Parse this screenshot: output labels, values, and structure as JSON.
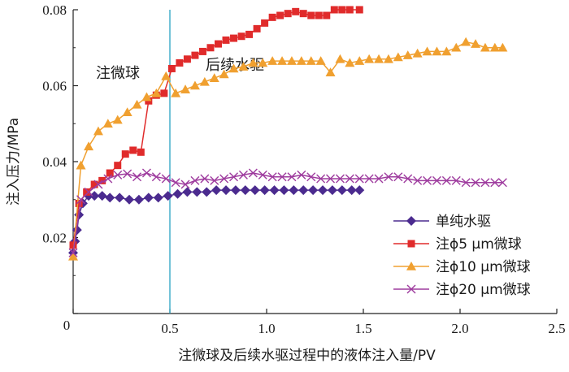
{
  "chart_data": {
    "type": "line",
    "title": "",
    "xlabel": "注微球及后续水驱过程中的液体注入量/PV",
    "ylabel": "注入压力/MPa",
    "xlim": [
      0,
      2.5
    ],
    "ylim": [
      0,
      0.08
    ],
    "x_ticks": [
      "0",
      "0.5",
      "1.0",
      "1.5",
      "2.0",
      "2.5"
    ],
    "y_ticks": [
      "0",
      "0.02",
      "0.04",
      "0.06",
      "0.08"
    ],
    "x_tick_values": [
      0,
      0.5,
      1.0,
      1.5,
      2.0,
      2.5
    ],
    "y_tick_values": [
      0,
      0.02,
      0.04,
      0.06,
      0.08
    ],
    "grid": false,
    "legend_position": "lower-right",
    "annotations": [
      {
        "text": "注微球",
        "position": "left of line"
      },
      {
        "text": "后续水驱",
        "position": "right of line"
      }
    ],
    "vertical_line": {
      "x": 0.5,
      "color": "#29a3c4"
    },
    "series": [
      {
        "name": "单纯水驱",
        "marker": "diamond",
        "color": "#4b2b8f",
        "x": [
          0.0,
          0.01,
          0.02,
          0.03,
          0.05,
          0.08,
          0.11,
          0.15,
          0.19,
          0.24,
          0.29,
          0.34,
          0.39,
          0.44,
          0.49,
          0.54,
          0.59,
          0.64,
          0.69,
          0.74,
          0.79,
          0.84,
          0.89,
          0.94,
          0.99,
          1.04,
          1.09,
          1.14,
          1.19,
          1.24,
          1.29,
          1.34,
          1.39,
          1.44,
          1.48
        ],
        "y": [
          0.016,
          0.019,
          0.022,
          0.026,
          0.029,
          0.031,
          0.031,
          0.031,
          0.0305,
          0.0305,
          0.03,
          0.03,
          0.0305,
          0.0305,
          0.031,
          0.0315,
          0.032,
          0.032,
          0.032,
          0.0325,
          0.0325,
          0.0325,
          0.0325,
          0.0325,
          0.0325,
          0.0325,
          0.0325,
          0.0325,
          0.0325,
          0.0325,
          0.0325,
          0.0325,
          0.0325,
          0.0325,
          0.0325
        ]
      },
      {
        "name": "注ϕ5 μm微球",
        "marker": "square",
        "color": "#e02b2b",
        "x": [
          0.0,
          0.03,
          0.07,
          0.11,
          0.15,
          0.19,
          0.23,
          0.27,
          0.31,
          0.35,
          0.39,
          0.43,
          0.47,
          0.51,
          0.55,
          0.59,
          0.63,
          0.67,
          0.71,
          0.75,
          0.79,
          0.83,
          0.87,
          0.91,
          0.95,
          0.99,
          1.03,
          1.07,
          1.11,
          1.15,
          1.19,
          1.23,
          1.27,
          1.31,
          1.35,
          1.39,
          1.43,
          1.48
        ],
        "y": [
          0.018,
          0.029,
          0.032,
          0.034,
          0.035,
          0.037,
          0.039,
          0.042,
          0.043,
          0.0425,
          0.056,
          0.0575,
          0.058,
          0.0645,
          0.066,
          0.067,
          0.068,
          0.069,
          0.07,
          0.071,
          0.072,
          0.0725,
          0.073,
          0.0735,
          0.075,
          0.0765,
          0.078,
          0.0785,
          0.079,
          0.0795,
          0.079,
          0.0785,
          0.0785,
          0.0785,
          0.08,
          0.08,
          0.08,
          0.08
        ]
      },
      {
        "name": "注ϕ10 μm微球",
        "marker": "triangle",
        "color": "#f0a030",
        "x": [
          0.0,
          0.04,
          0.08,
          0.13,
          0.18,
          0.23,
          0.28,
          0.33,
          0.38,
          0.43,
          0.48,
          0.53,
          0.58,
          0.63,
          0.68,
          0.73,
          0.78,
          0.83,
          0.88,
          0.93,
          0.98,
          1.03,
          1.08,
          1.13,
          1.18,
          1.23,
          1.28,
          1.33,
          1.38,
          1.43,
          1.48,
          1.53,
          1.58,
          1.63,
          1.68,
          1.73,
          1.78,
          1.83,
          1.88,
          1.93,
          1.98,
          2.03,
          2.08,
          2.13,
          2.18,
          2.22
        ],
        "y": [
          0.015,
          0.039,
          0.044,
          0.048,
          0.05,
          0.051,
          0.053,
          0.055,
          0.057,
          0.058,
          0.0625,
          0.058,
          0.059,
          0.06,
          0.061,
          0.062,
          0.063,
          0.0645,
          0.065,
          0.066,
          0.066,
          0.0665,
          0.0665,
          0.0665,
          0.0665,
          0.0665,
          0.0665,
          0.0635,
          0.067,
          0.066,
          0.0665,
          0.067,
          0.067,
          0.067,
          0.0675,
          0.068,
          0.0685,
          0.069,
          0.069,
          0.069,
          0.07,
          0.0715,
          0.071,
          0.07,
          0.07,
          0.07
        ]
      },
      {
        "name": "注ϕ20 μm微球",
        "marker": "x",
        "color": "#9e3b9e",
        "x": [
          0.0,
          0.04,
          0.08,
          0.13,
          0.18,
          0.23,
          0.28,
          0.33,
          0.38,
          0.43,
          0.48,
          0.53,
          0.58,
          0.63,
          0.68,
          0.73,
          0.78,
          0.83,
          0.88,
          0.93,
          0.98,
          1.03,
          1.08,
          1.13,
          1.18,
          1.23,
          1.28,
          1.33,
          1.38,
          1.43,
          1.48,
          1.53,
          1.58,
          1.63,
          1.68,
          1.73,
          1.78,
          1.83,
          1.88,
          1.93,
          1.98,
          2.03,
          2.08,
          2.13,
          2.18,
          2.22
        ],
        "y": [
          0.016,
          0.03,
          0.032,
          0.034,
          0.0355,
          0.0365,
          0.0368,
          0.036,
          0.037,
          0.036,
          0.0355,
          0.0345,
          0.034,
          0.035,
          0.0355,
          0.035,
          0.0355,
          0.036,
          0.0365,
          0.037,
          0.0365,
          0.036,
          0.036,
          0.036,
          0.0365,
          0.036,
          0.0355,
          0.0355,
          0.0355,
          0.0355,
          0.0355,
          0.0355,
          0.0355,
          0.036,
          0.036,
          0.0355,
          0.035,
          0.035,
          0.035,
          0.035,
          0.035,
          0.0345,
          0.0345,
          0.0345,
          0.0345,
          0.0345
        ]
      }
    ]
  }
}
